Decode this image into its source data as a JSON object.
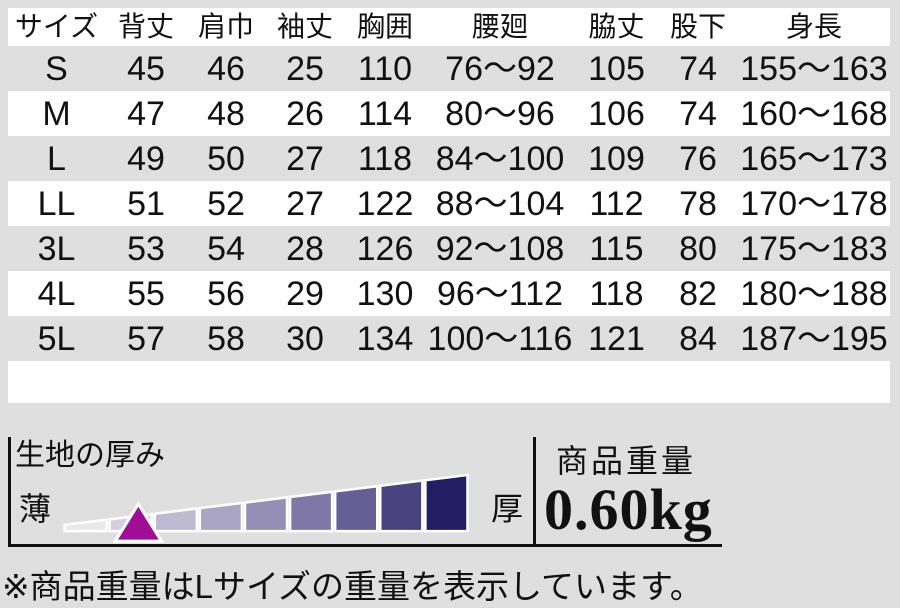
{
  "colors": {
    "background": "#dfdfdf",
    "row_white": "#ffffff",
    "text": "#111111",
    "line": "#111111",
    "marker": "#a00d96",
    "wedge_segments": [
      "#e9e7f0",
      "#d2cfe1",
      "#bebad1",
      "#aaa5c3",
      "#958fb5",
      "#7f78a6",
      "#665f95",
      "#49427f",
      "#211e63"
    ]
  },
  "size_table": {
    "headers": [
      "サイズ",
      "背丈",
      "肩巾",
      "袖丈",
      "胸囲",
      "腰廻",
      "脇丈",
      "股下",
      "身長"
    ],
    "rows": [
      {
        "size": "S",
        "shaded": true,
        "values": [
          "45",
          "46",
          "25",
          "110",
          "76〜92",
          "105",
          "74",
          "155〜163"
        ]
      },
      {
        "size": "M",
        "shaded": false,
        "values": [
          "47",
          "48",
          "26",
          "114",
          "80〜96",
          "106",
          "74",
          "160〜168"
        ]
      },
      {
        "size": "L",
        "shaded": true,
        "values": [
          "49",
          "50",
          "27",
          "118",
          "84〜100",
          "109",
          "76",
          "165〜173"
        ]
      },
      {
        "size": "LL",
        "shaded": false,
        "values": [
          "51",
          "52",
          "27",
          "122",
          "88〜104",
          "112",
          "78",
          "170〜178"
        ]
      },
      {
        "size": "3L",
        "shaded": true,
        "values": [
          "53",
          "54",
          "28",
          "126",
          "92〜108",
          "115",
          "80",
          "175〜183"
        ]
      },
      {
        "size": "4L",
        "shaded": false,
        "values": [
          "55",
          "56",
          "29",
          "130",
          "96〜112",
          "118",
          "82",
          "180〜188"
        ]
      },
      {
        "size": "5L",
        "shaded": true,
        "values": [
          "57",
          "58",
          "30",
          "134",
          "100〜116",
          "121",
          "84",
          "187〜195"
        ]
      }
    ]
  },
  "thickness_meter": {
    "title": "生地の厚み",
    "thin_label": "薄",
    "thick_label": "厚",
    "segment_count": 9,
    "marker_segment": 2
  },
  "product_weight": {
    "title": "商品重量",
    "value": "0.60kg"
  },
  "footer_note": "※商品重量はLサイズの重量を表示しています。"
}
